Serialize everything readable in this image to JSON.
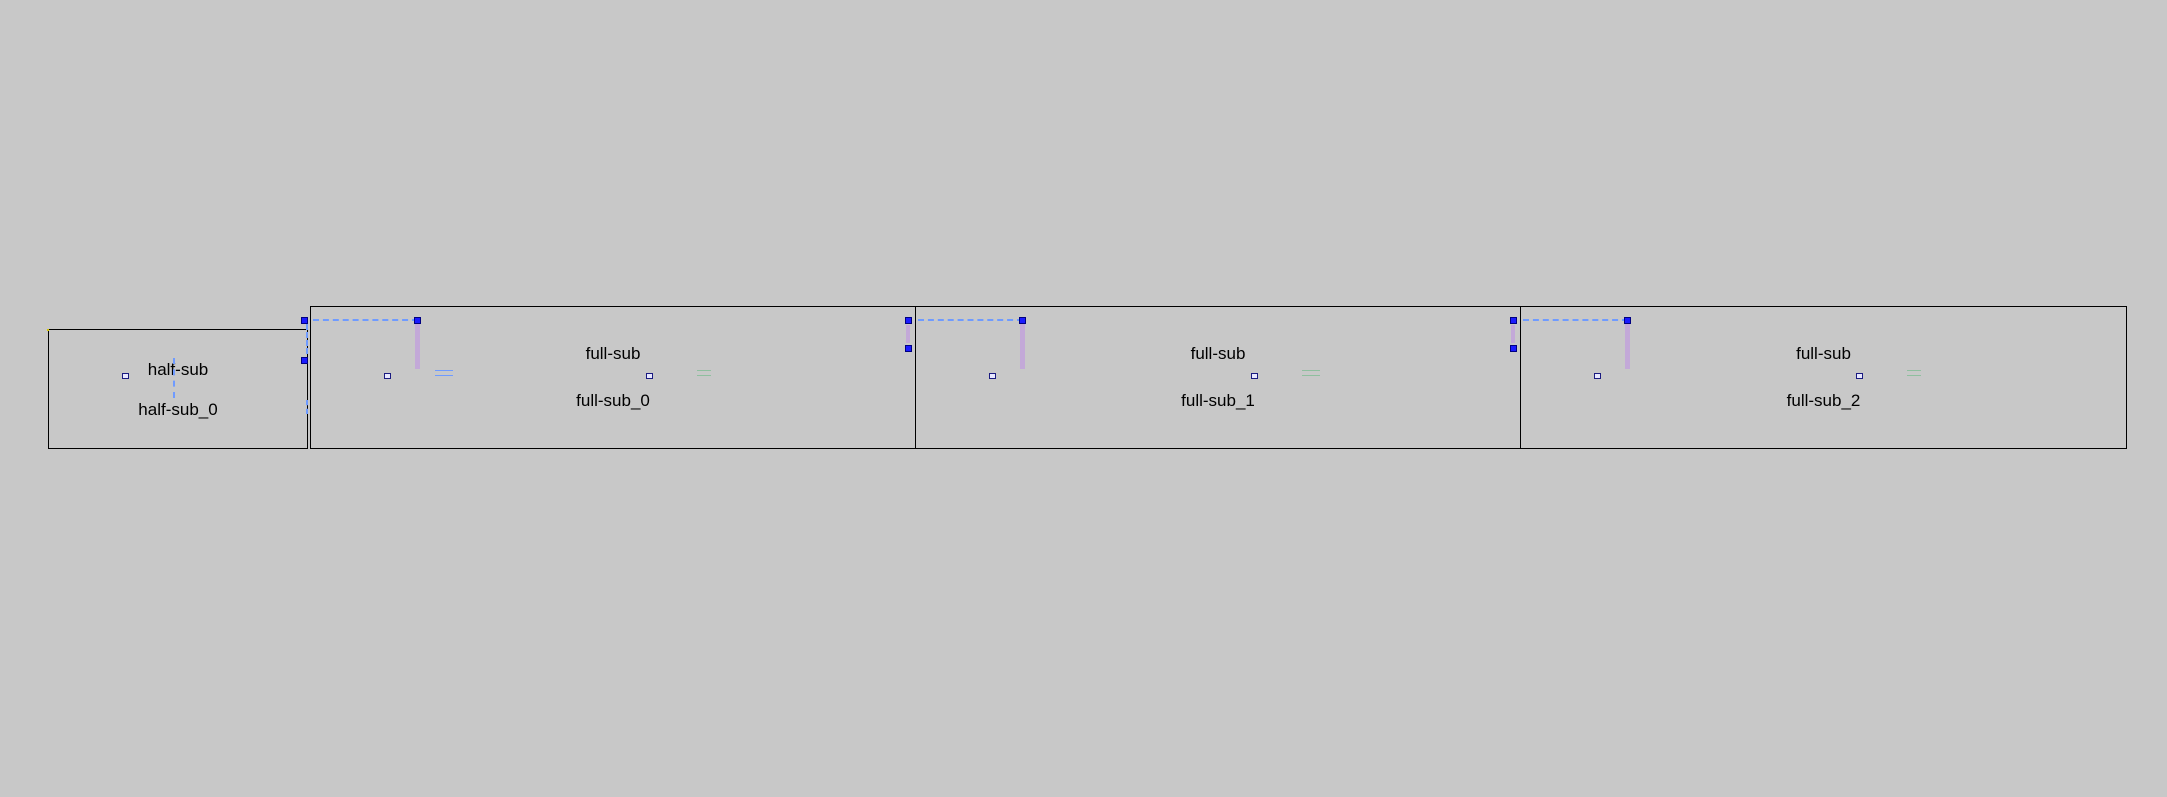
{
  "diagram": {
    "background": "#c8c8c8",
    "wire_color": "#6f9bff",
    "bus_color": "#c3a9d8",
    "port_color": "#1a1aff",
    "blocks": [
      {
        "id": "half-sub_0",
        "type_label": "half-sub",
        "instance_label": "half-sub_0"
      },
      {
        "id": "full-sub_0",
        "type_label": "full-sub",
        "instance_label": "full-sub_0"
      },
      {
        "id": "full-sub_1",
        "type_label": "full-sub",
        "instance_label": "full-sub_1"
      },
      {
        "id": "full-sub_2",
        "type_label": "full-sub",
        "instance_label": "full-sub_2"
      }
    ]
  }
}
